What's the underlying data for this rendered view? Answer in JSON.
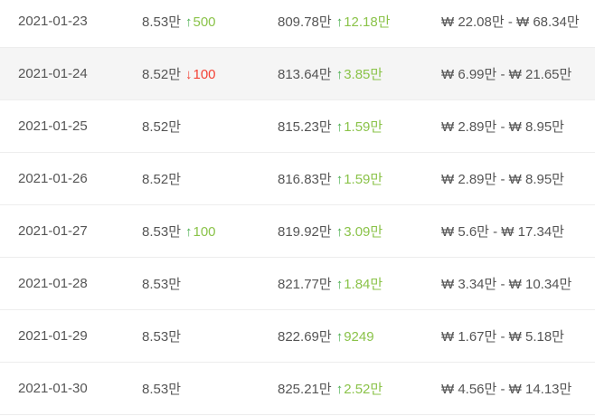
{
  "colors": {
    "up_arrow": "#4caf50",
    "up_text": "#8bc34a",
    "down": "#f44336",
    "text": "#555555",
    "row_highlight": "#f5f5f5",
    "row_border": "#ededed"
  },
  "icons": {
    "up_arrow": "↑",
    "down_arrow": "↓"
  },
  "table": {
    "rows": [
      {
        "date": "2021-01-23",
        "price": "8.53만",
        "price_change": {
          "direction": "up",
          "arrow": "↑",
          "value": "500"
        },
        "total": "809.78만",
        "total_change": {
          "direction": "up",
          "arrow": "↑",
          "value": "12.18만"
        },
        "range": "₩ 22.08만 - ₩ 68.34만"
      },
      {
        "date": "2021-01-24",
        "price": "8.52만",
        "price_change": {
          "direction": "down",
          "arrow": "↓",
          "value": "100"
        },
        "total": "813.64만",
        "total_change": {
          "direction": "up",
          "arrow": "↑",
          "value": "3.85만"
        },
        "range": "₩ 6.99만 - ₩ 21.65만",
        "highlighted": true
      },
      {
        "date": "2021-01-25",
        "price": "8.52만",
        "total": "815.23만",
        "total_change": {
          "direction": "up",
          "arrow": "↑",
          "value": "1.59만"
        },
        "range": "₩ 2.89만 - ₩ 8.95만"
      },
      {
        "date": "2021-01-26",
        "price": "8.52만",
        "total": "816.83만",
        "total_change": {
          "direction": "up",
          "arrow": "↑",
          "value": "1.59만"
        },
        "range": "₩ 2.89만 - ₩ 8.95만"
      },
      {
        "date": "2021-01-27",
        "price": "8.53만",
        "price_change": {
          "direction": "up",
          "arrow": "↑",
          "value": "100"
        },
        "total": "819.92만",
        "total_change": {
          "direction": "up",
          "arrow": "↑",
          "value": "3.09만"
        },
        "range": "₩ 5.6만 - ₩ 17.34만"
      },
      {
        "date": "2021-01-28",
        "price": "8.53만",
        "total": "821.77만",
        "total_change": {
          "direction": "up",
          "arrow": "↑",
          "value": "1.84만"
        },
        "range": "₩ 3.34만 - ₩ 10.34만"
      },
      {
        "date": "2021-01-29",
        "price": "8.53만",
        "total": "822.69만",
        "total_change": {
          "direction": "up",
          "arrow": "↑",
          "value": "9249"
        },
        "range": "₩ 1.67만 - ₩ 5.18만"
      },
      {
        "date": "2021-01-30",
        "price": "8.53만",
        "total": "825.21만",
        "total_change": {
          "direction": "up",
          "arrow": "↑",
          "value": "2.52만"
        },
        "range": "₩ 4.56만 - ₩ 14.13만"
      }
    ]
  },
  "chart_data": {
    "type": "table",
    "columns": [
      "date",
      "price",
      "price_change",
      "total",
      "total_change",
      "won_range"
    ],
    "rows": [
      [
        "2021-01-23",
        "8.53만",
        "+500",
        "809.78만",
        "+12.18만",
        "₩ 22.08만 - ₩ 68.34만"
      ],
      [
        "2021-01-24",
        "8.52만",
        "-100",
        "813.64만",
        "+3.85만",
        "₩ 6.99만 - ₩ 21.65만"
      ],
      [
        "2021-01-25",
        "8.52만",
        "",
        "815.23만",
        "+1.59만",
        "₩ 2.89만 - ₩ 8.95만"
      ],
      [
        "2021-01-26",
        "8.52만",
        "",
        "816.83만",
        "+1.59만",
        "₩ 2.89만 - ₩ 8.95만"
      ],
      [
        "2021-01-27",
        "8.53만",
        "+100",
        "819.92만",
        "+3.09만",
        "₩ 5.6만 - ₩ 17.34만"
      ],
      [
        "2021-01-28",
        "8.53만",
        "",
        "821.77만",
        "+1.84만",
        "₩ 3.34만 - ₩ 10.34만"
      ],
      [
        "2021-01-29",
        "8.53만",
        "",
        "822.69만",
        "+9249",
        "₩ 1.67만 - ₩ 5.18만"
      ],
      [
        "2021-01-30",
        "8.53만",
        "",
        "825.21만",
        "+2.52만",
        "₩ 4.56만 - ₩ 14.13만"
      ]
    ]
  }
}
